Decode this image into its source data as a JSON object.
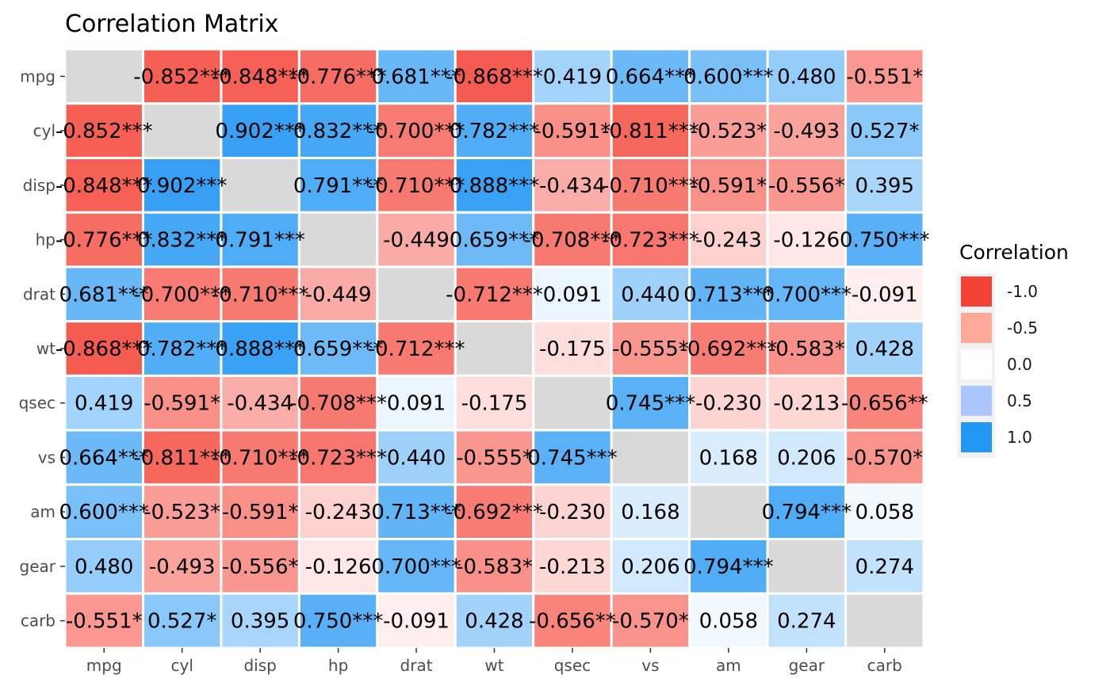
{
  "chart_data": {
    "type": "heatmap",
    "title": "Correlation Matrix",
    "variables": [
      "mpg",
      "cyl",
      "disp",
      "hp",
      "drat",
      "wt",
      "qsec",
      "vs",
      "am",
      "gear",
      "carb"
    ],
    "diagonal_color": "#d9d9d9",
    "cells": [
      [
        null,
        "-0.852***",
        "-0.848***",
        "-0.776***",
        "0.681***",
        "-0.868***",
        "0.419",
        "0.664***",
        "0.600***",
        "0.480",
        "-0.551*"
      ],
      [
        "-0.852***",
        null,
        "0.902***",
        "0.832***",
        "-0.700***",
        "0.782***",
        "-0.591*",
        "-0.811***",
        "-0.523*",
        "-0.493",
        "0.527*"
      ],
      [
        "-0.848***",
        "0.902***",
        null,
        "0.791***",
        "-0.710***",
        "0.888***",
        "-0.434",
        "-0.710***",
        "-0.591*",
        "-0.556*",
        "0.395"
      ],
      [
        "-0.776***",
        "0.832***",
        "0.791***",
        null,
        "-0.449",
        "0.659***",
        "-0.708***",
        "-0.723***",
        "-0.243",
        "-0.126",
        "0.750***"
      ],
      [
        "0.681***",
        "-0.700***",
        "-0.710***",
        "-0.449",
        null,
        "-0.712***",
        "0.091",
        "0.440",
        "0.713***",
        "0.700***",
        "-0.091"
      ],
      [
        "-0.868***",
        "0.782***",
        "0.888***",
        "0.659***",
        "-0.712***",
        null,
        "-0.175",
        "-0.555*",
        "-0.692***",
        "-0.583*",
        "0.428"
      ],
      [
        "0.419",
        "-0.591*",
        "-0.434",
        "-0.708***",
        "0.091",
        "-0.175",
        null,
        "0.745***",
        "-0.230",
        "-0.213",
        "-0.656**"
      ],
      [
        "0.664***",
        "-0.811***",
        "-0.710***",
        "-0.723***",
        "0.440",
        "-0.555*",
        "0.745***",
        null,
        "0.168",
        "0.206",
        "-0.570*"
      ],
      [
        "0.600***",
        "-0.523*",
        "-0.591*",
        "-0.243",
        "0.713***",
        "-0.692***",
        "-0.230",
        "0.168",
        null,
        "0.794***",
        "0.058"
      ],
      [
        "0.480",
        "-0.493",
        "-0.556*",
        "-0.126",
        "0.700***",
        "-0.583*",
        "-0.213",
        "0.206",
        "0.794***",
        null,
        "0.274"
      ],
      [
        "-0.551*",
        "0.527*",
        "0.395",
        "0.750***",
        "-0.091",
        "0.428",
        "-0.656**",
        "-0.570*",
        "0.058",
        "0.274",
        null
      ]
    ],
    "legend": {
      "title": "Correlation",
      "placement": "right",
      "entries": [
        {
          "label": "-1.0",
          "value": -1.0,
          "color": "#f44336"
        },
        {
          "label": "-0.5",
          "value": -0.5,
          "color": "#fea898"
        },
        {
          "label": "0.0",
          "value": 0.0,
          "color": "#ffffff"
        },
        {
          "label": "0.5",
          "value": 0.5,
          "color": "#abc6fc"
        },
        {
          "label": "1.0",
          "value": 1.0,
          "color": "#2196f3"
        }
      ]
    },
    "scale_colors": {
      "negative": "#f44336",
      "mid": "#ffffff",
      "positive": "#2196f3"
    },
    "panel_background": "#ebebeb",
    "grid": false
  }
}
